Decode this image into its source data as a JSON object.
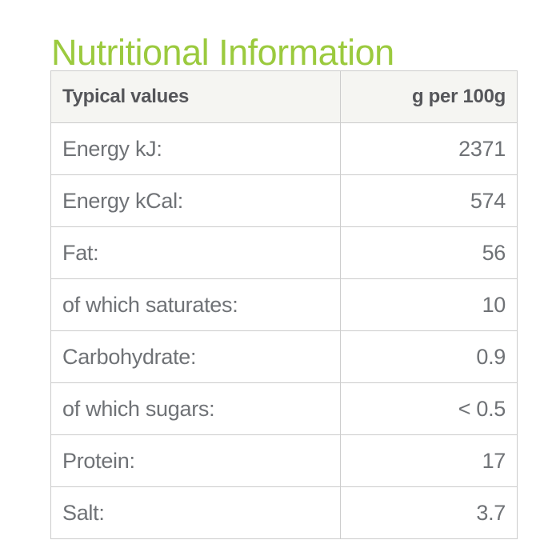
{
  "page": {
    "background_color": "#ffffff"
  },
  "title": {
    "text": "Nutritional Information",
    "color": "#9bca3e"
  },
  "table": {
    "header": {
      "col1": "Typical values",
      "col2": "g per 100g"
    },
    "rows": [
      {
        "label": "Energy kJ:",
        "value": "2371"
      },
      {
        "label": "Energy kCal:",
        "value": "574"
      },
      {
        "label": "Fat:",
        "value": "56"
      },
      {
        "label": "of which saturates:",
        "value": "10"
      },
      {
        "label": "Carbohydrate:",
        "value": "0.9"
      },
      {
        "label": "of which sugars:",
        "value": "< 0.5"
      },
      {
        "label": "Protein:",
        "value": "17"
      },
      {
        "label": "Salt:",
        "value": "3.7"
      }
    ],
    "colors": {
      "header_background": "#f5f5f2",
      "header_text": "#55565a",
      "body_text": "#6f7276",
      "border": "#cccccc"
    }
  }
}
